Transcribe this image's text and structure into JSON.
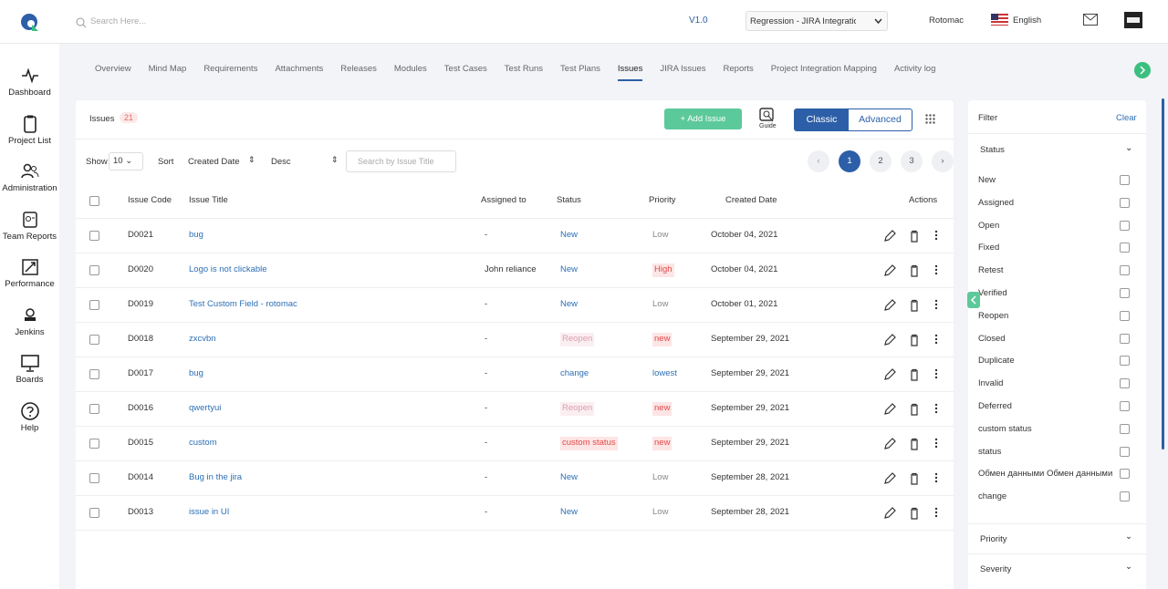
{
  "header": {
    "search_placeholder": "Search Here...",
    "version": "V1.0",
    "project": "Regression - JIRA Integration",
    "user": "Rotomac",
    "language": "English"
  },
  "sidebar": [
    "Dashboard",
    "Project List",
    "Administration",
    "Team Reports",
    "Performance",
    "Jenkins",
    "Boards",
    "Help"
  ],
  "tabs": [
    "Overview",
    "Mind Map",
    "Requirements",
    "Attachments",
    "Releases",
    "Modules",
    "Test Cases",
    "Test Runs",
    "Test Plans",
    "Issues",
    "JIRA Issues",
    "Reports",
    "Project Integration Mapping",
    "Activity log"
  ],
  "panel": {
    "title": "Issues",
    "count": 21,
    "add_button": "Add Issue",
    "guide": "Guide",
    "views": [
      "Classic",
      "Advanced"
    ]
  },
  "controls": {
    "show_label": "Show",
    "show_value": 10,
    "sort_label": "Sort",
    "sort_field": "Created Date",
    "sort_order": "Desc",
    "search_placeholder": "Search by Issue Title",
    "pages": [
      1,
      2,
      3
    ]
  },
  "table": {
    "columns": [
      "Issue Code",
      "Issue Title",
      "Assigned to",
      "Status",
      "Priority",
      "Created Date",
      "Actions"
    ],
    "rows": [
      [
        "D0021",
        "bug",
        "-",
        "New",
        "Low",
        "October 04, 2021"
      ],
      [
        "D0020",
        "Logo is not clickable",
        "John reliance",
        "New",
        "High",
        "October 04, 2021"
      ],
      [
        "D0019",
        "Test Custom Field - rotomac",
        "-",
        "New",
        "Low",
        "October 01, 2021"
      ],
      [
        "D0018",
        "zxcvbn",
        "-",
        "Reopen",
        "new",
        "September 29, 2021"
      ],
      [
        "D0017",
        "bug",
        "-",
        "change",
        "lowest",
        "September 29, 2021"
      ],
      [
        "D0016",
        "qwertyui",
        "-",
        "Reopen",
        "new",
        "September 29, 2021"
      ],
      [
        "D0015",
        "custom",
        "-",
        "custom status",
        "new",
        "September 29, 2021"
      ],
      [
        "D0014",
        "Bug in the jira",
        "-",
        "New",
        "Low",
        "September 28, 2021"
      ],
      [
        "D0013",
        "issue in UI",
        "-",
        "New",
        "Low",
        "September 28, 2021"
      ]
    ]
  },
  "filter": {
    "title": "Filter",
    "clear": "Clear",
    "status_title": "Status",
    "status_options": [
      "New",
      "Assigned",
      "Open",
      "Fixed",
      "Retest",
      "Verified",
      "Reopen",
      "Closed",
      "Duplicate",
      "Invalid",
      "Deferred",
      "custom status",
      "status",
      "Обмен данными Обмен данными",
      "change"
    ],
    "sections": [
      "Priority",
      "Severity"
    ]
  }
}
